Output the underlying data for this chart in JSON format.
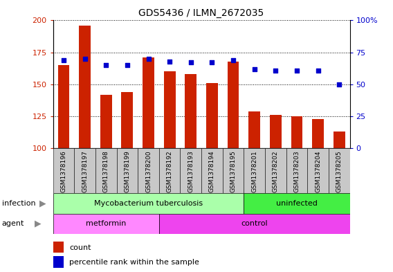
{
  "title": "GDS5436 / ILMN_2672035",
  "samples": [
    "GSM1378196",
    "GSM1378197",
    "GSM1378198",
    "GSM1378199",
    "GSM1378200",
    "GSM1378192",
    "GSM1378193",
    "GSM1378194",
    "GSM1378195",
    "GSM1378201",
    "GSM1378202",
    "GSM1378203",
    "GSM1378204",
    "GSM1378205"
  ],
  "bar_values": [
    165,
    196,
    142,
    144,
    171,
    160,
    158,
    151,
    168,
    129,
    126,
    125,
    123,
    113
  ],
  "dot_values": [
    69,
    70,
    65,
    65,
    70,
    68,
    67,
    67,
    69,
    62,
    61,
    61,
    61,
    50
  ],
  "ylim_left": [
    100,
    200
  ],
  "ylim_right": [
    0,
    100
  ],
  "yticks_left": [
    100,
    125,
    150,
    175,
    200
  ],
  "yticks_right": [
    0,
    25,
    50,
    75,
    100
  ],
  "bar_color": "#cc2200",
  "dot_color": "#0000cc",
  "tick_bg_color": "#c8c8c8",
  "infection_groups": [
    {
      "label": "Mycobacterium tuberculosis",
      "start": 0,
      "end": 9,
      "color": "#aaffaa"
    },
    {
      "label": "uninfected",
      "start": 9,
      "end": 14,
      "color": "#44ee44"
    }
  ],
  "agent_groups": [
    {
      "label": "metformin",
      "start": 0,
      "end": 5,
      "color": "#ff88ff"
    },
    {
      "label": "control",
      "start": 5,
      "end": 14,
      "color": "#ee44ee"
    }
  ],
  "infection_label": "infection",
  "agent_label": "agent",
  "arrow_color": "#888888",
  "legend_count": "count",
  "legend_percentile": "percentile rank within the sample"
}
